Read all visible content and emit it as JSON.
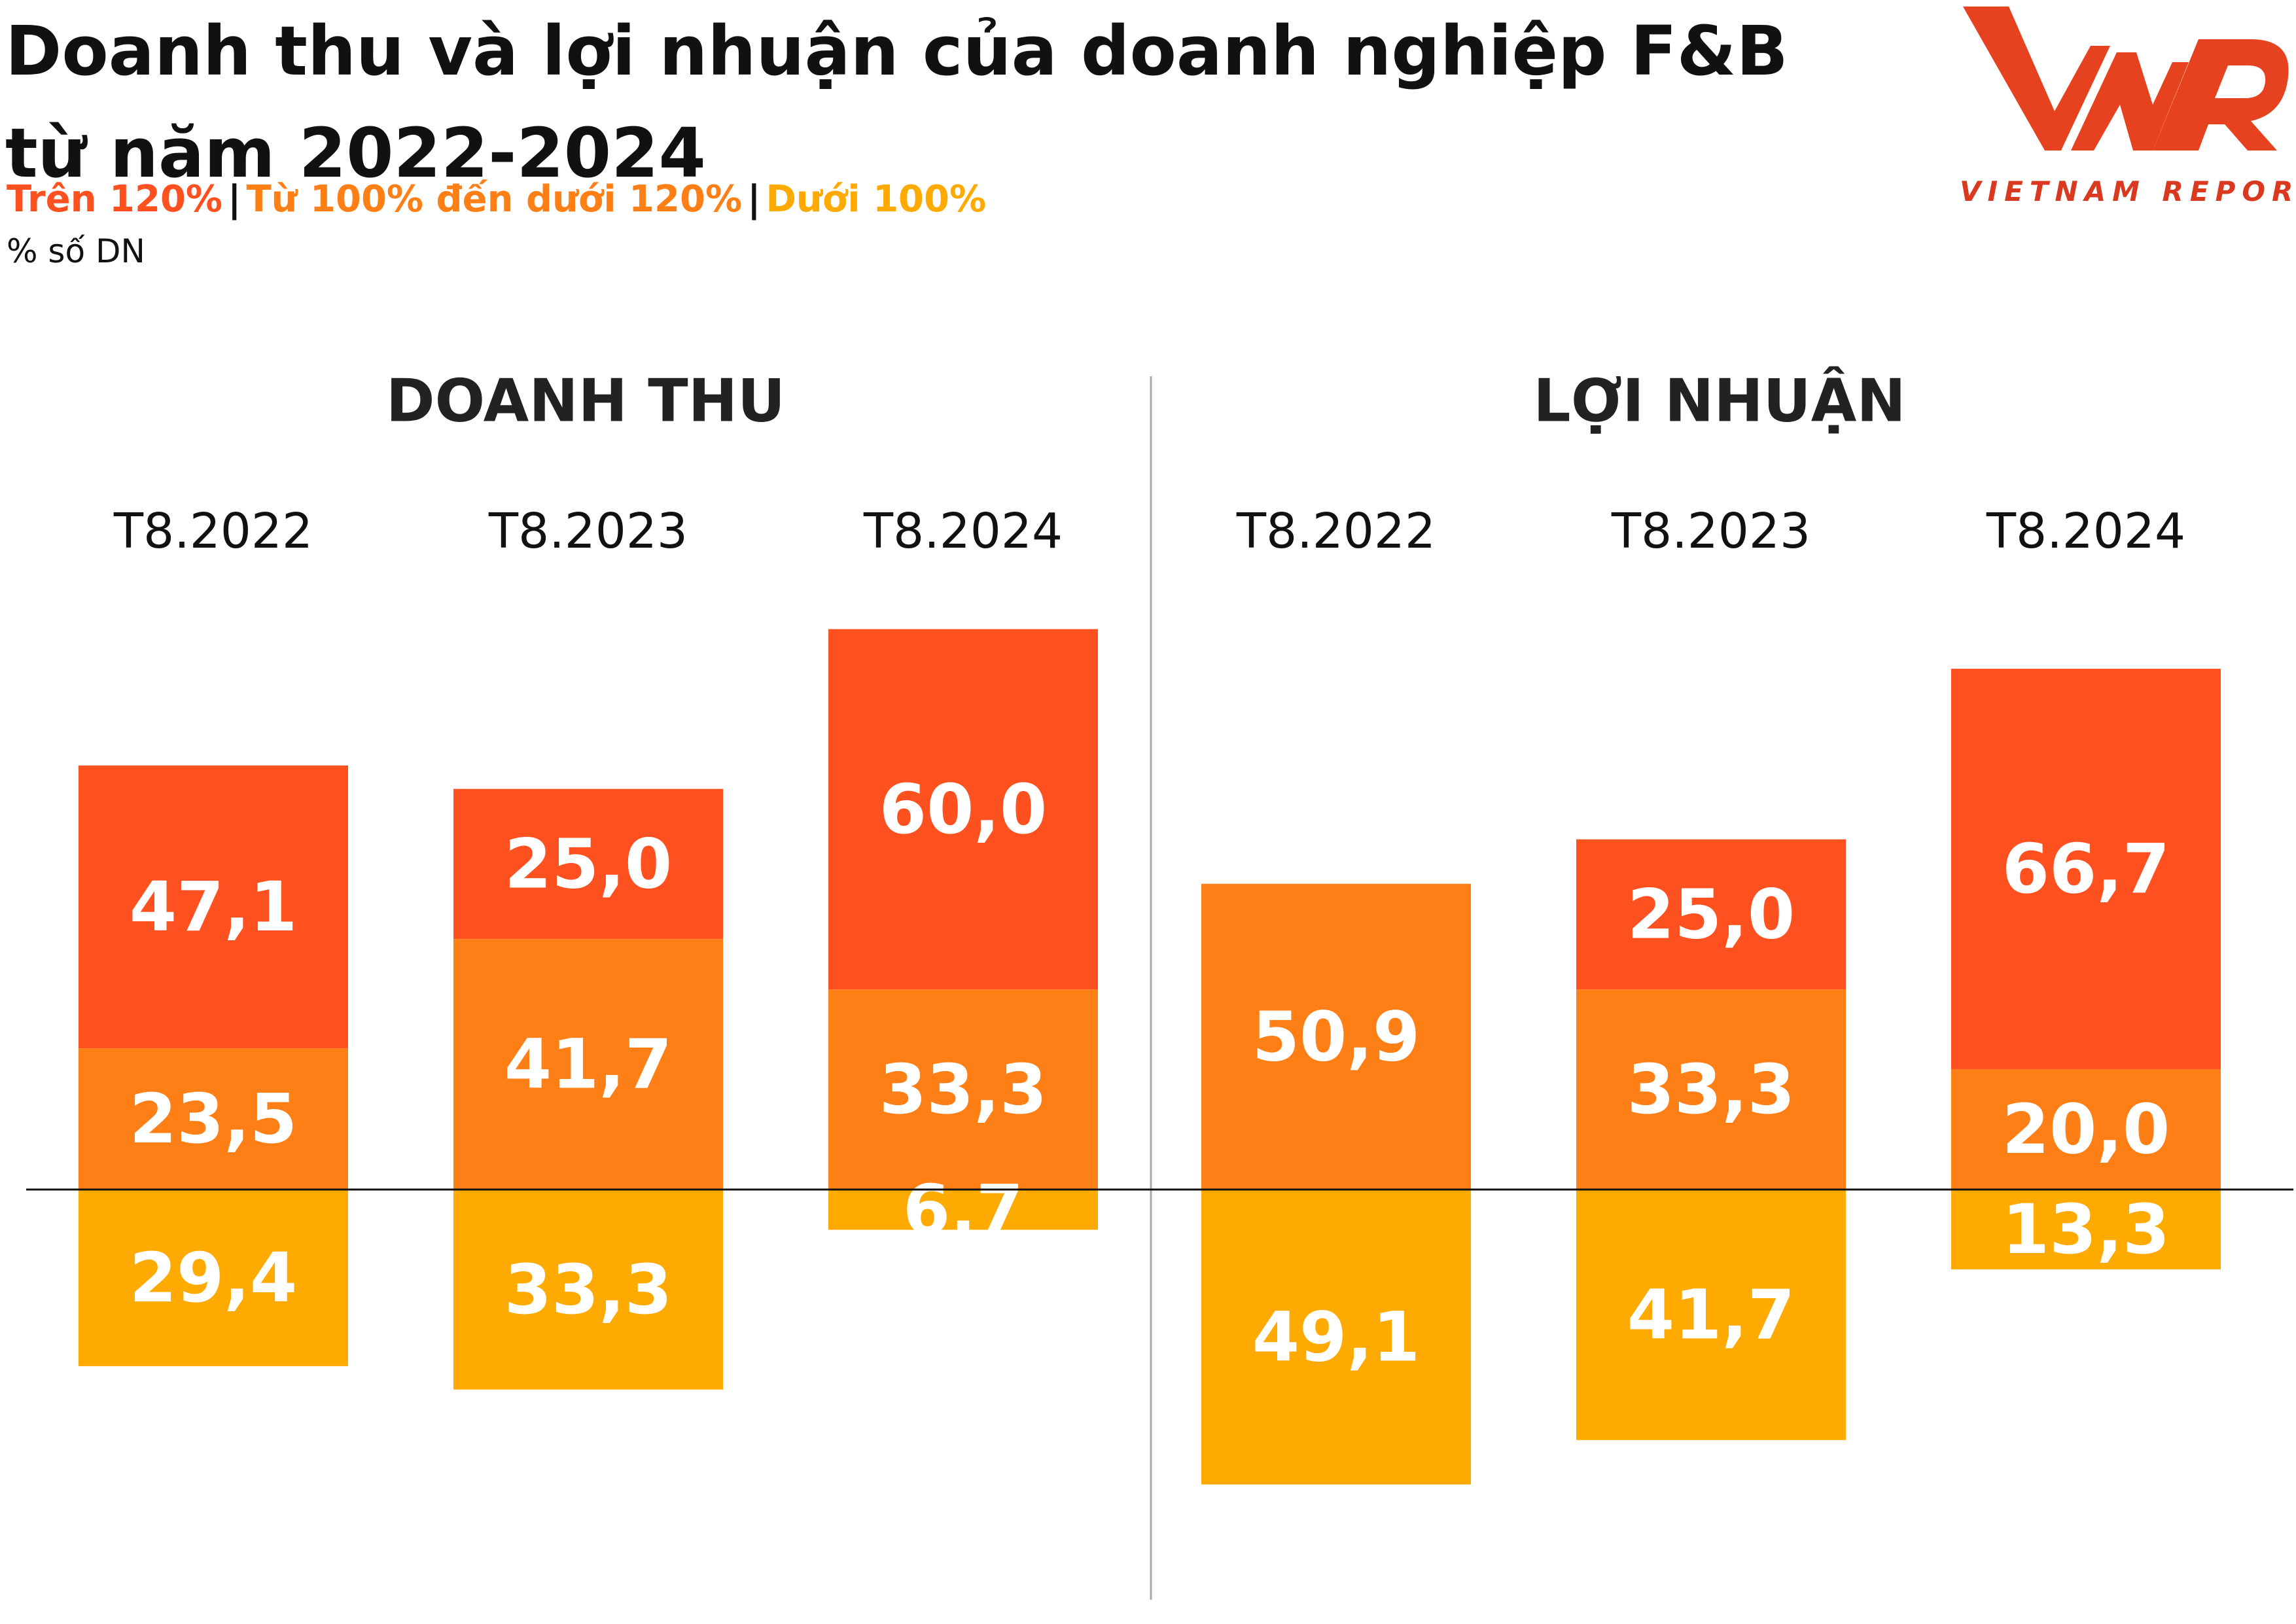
{
  "title_line1": "Doanh thu và lợi nhuận của doanh nghiệp F&B",
  "title_line2": "từ năm 2022-2024",
  "legend": [
    {
      "label": "Trên 120%",
      "color": "#ff5020"
    },
    {
      "label": "Từ 100% đến dưới 120%",
      "color": "#ff7f17"
    },
    {
      "label": "Dưới 100%",
      "color": "#ffaa00"
    }
  ],
  "unit": "% số DN",
  "logo_text": "VIETNAM REPORT",
  "chart_data": [
    {
      "type": "bar",
      "title": "DOANH THU",
      "categories": [
        "T8.2022",
        "T8.2023",
        "T8.2024"
      ],
      "series": [
        {
          "name": "Trên 120%",
          "values": [
            "47,1",
            "25,0",
            "60,0"
          ]
        },
        {
          "name": "Từ 100% đến dưới 120%",
          "values": [
            "23,5",
            "41,7",
            "33,3"
          ]
        },
        {
          "name": "Dưới 100%",
          "values": [
            "29,4",
            "33,3",
            "6,7"
          ]
        }
      ]
    },
    {
      "type": "bar",
      "title": "LỢI NHUẬN",
      "categories": [
        "T8.2022",
        "T8.2023",
        "T8.2024"
      ],
      "series": [
        {
          "name": "Trên 120%",
          "values": [
            "",
            "25,0",
            "66,7"
          ]
        },
        {
          "name": "Từ 100% đến dưới 120%",
          "values": [
            "50,9",
            "33,3",
            "20,0"
          ]
        },
        {
          "name": "Dưới 100%",
          "values": [
            "49,1",
            "41,7",
            "13,3"
          ]
        }
      ]
    }
  ]
}
